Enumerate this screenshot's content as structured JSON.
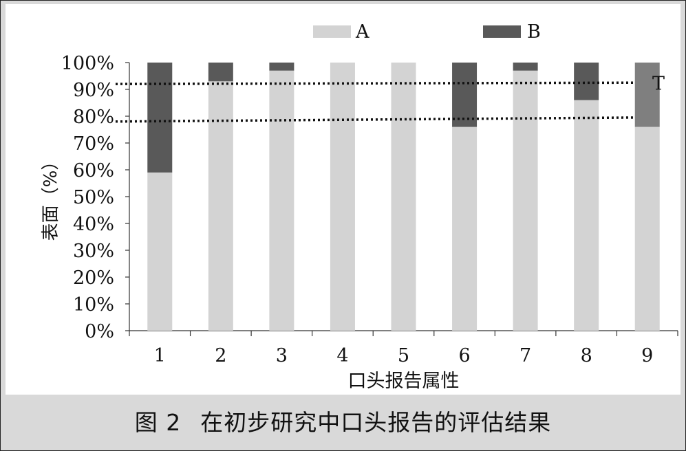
{
  "chart_data": {
    "type": "bar",
    "stacked": true,
    "categories": [
      "1",
      "2",
      "3",
      "4",
      "5",
      "6",
      "7",
      "8",
      "9"
    ],
    "series": [
      {
        "name": "A",
        "values": [
          59,
          93,
          97,
          100,
          100,
          76,
          97,
          86,
          76
        ],
        "color": "#d3d3d3"
      },
      {
        "name": "B",
        "values": [
          41,
          7,
          3,
          0,
          0,
          24,
          3,
          14,
          24
        ],
        "color": "#595959"
      }
    ],
    "last_bar_top_color": "#7f7f7f",
    "ylim": [
      0,
      100
    ],
    "yticks": [
      "0%",
      "10%",
      "20%",
      "30%",
      "40%",
      "50%",
      "60%",
      "70%",
      "80%",
      "90%",
      "100%"
    ],
    "ylabel": "表面（%）",
    "xlabel": "口头报告属性",
    "reference_lines": [
      {
        "y_start": 92,
        "y_end": 92.5,
        "label": "T"
      },
      {
        "y_start": 78,
        "y_end": 79.5,
        "label": ""
      }
    ],
    "legend_position": "top"
  },
  "caption": {
    "figure_number": "图 2",
    "text": "在初步研究中口头报告的评估结果"
  }
}
